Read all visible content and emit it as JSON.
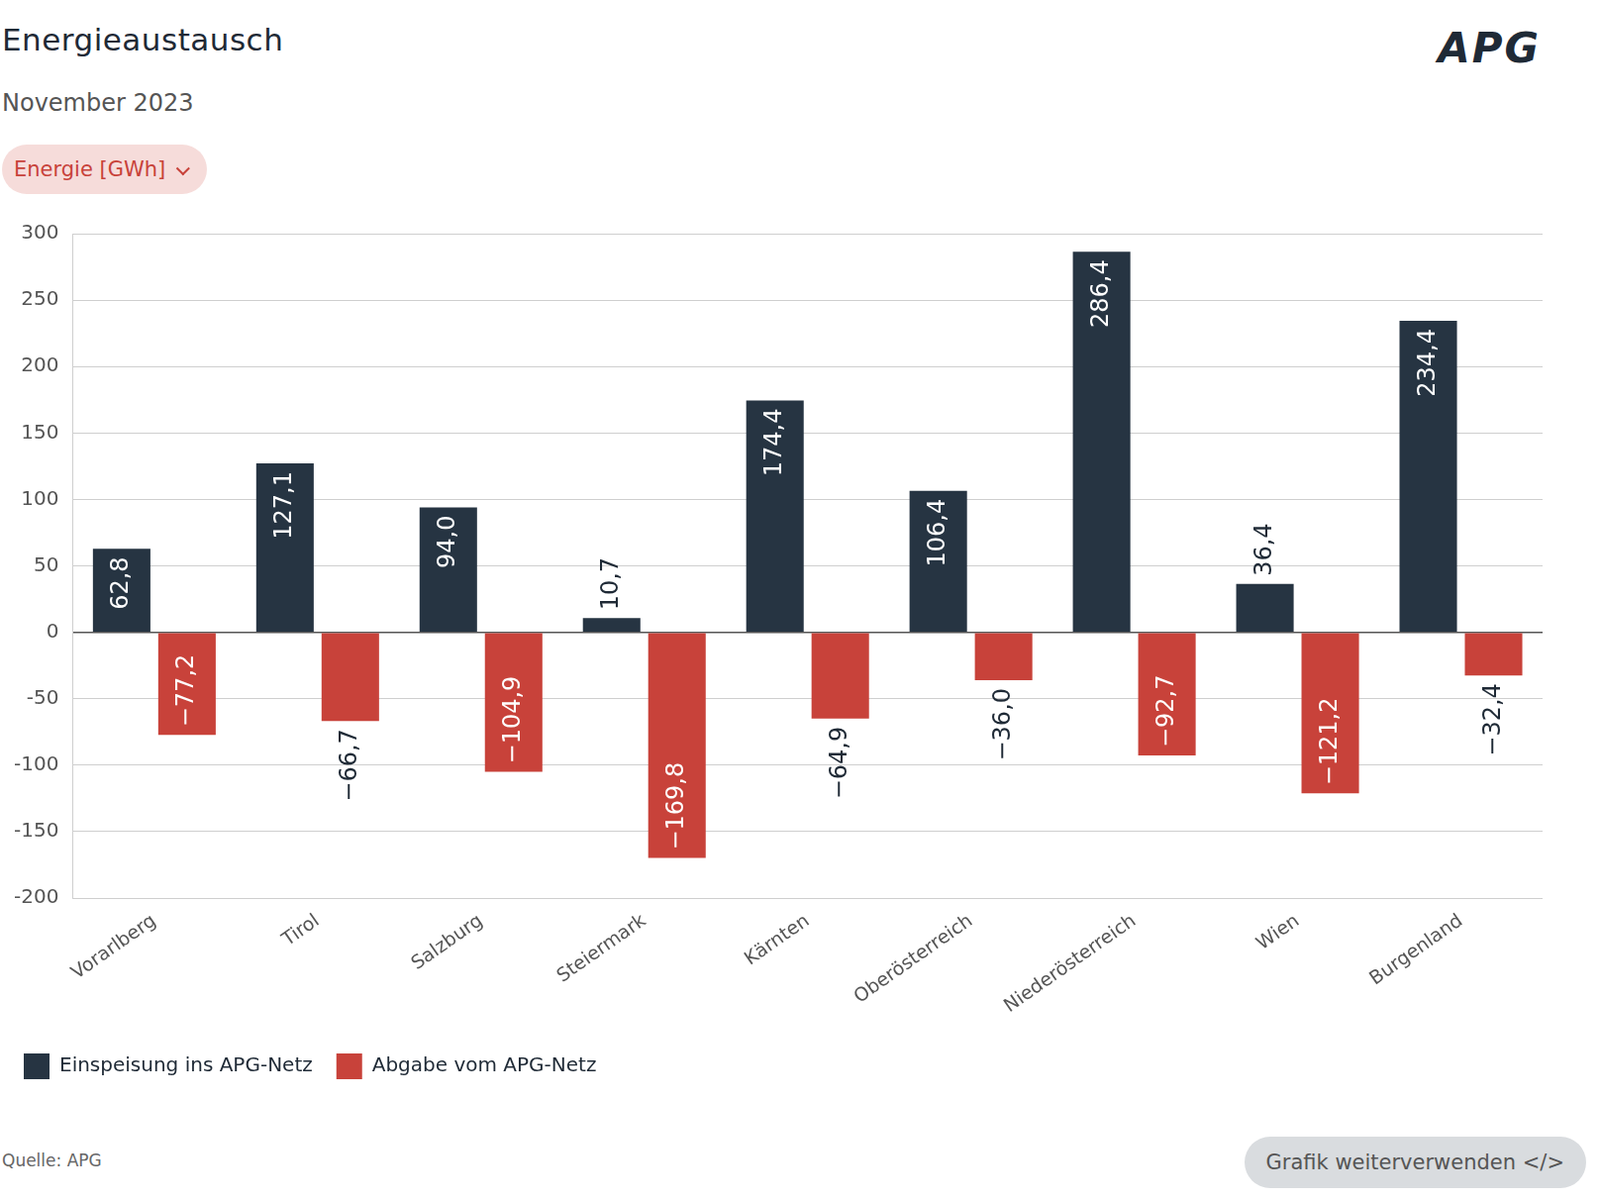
{
  "chart_data": {
    "type": "bar",
    "title": "Energieaustausch",
    "subtitle": "November 2023",
    "categories": [
      "Vorarlberg",
      "Tirol",
      "Salzburg",
      "Steiermark",
      "Kärnten",
      "Oberösterreich",
      "Niederösterreich",
      "Wien",
      "Burgenland"
    ],
    "series": [
      {
        "name": "Einspeisung ins APG-Netz",
        "color": "#263442",
        "values": [
          62.8,
          127.1,
          94.0,
          10.7,
          174.4,
          106.4,
          286.4,
          36.4,
          234.4
        ],
        "value_labels": [
          "62,8",
          "127,1",
          "94,0",
          "10,7",
          "174,4",
          "106,4",
          "286,4",
          "36,4",
          "234,4"
        ]
      },
      {
        "name": "Abgabe vom APG-Netz",
        "color": "#c8423a",
        "values": [
          -77.2,
          -66.7,
          -104.9,
          -169.8,
          -64.9,
          -36.0,
          -92.7,
          -121.2,
          -32.4
        ],
        "value_labels": [
          "−77,2",
          "−66,7",
          "−104,9",
          "−169,8",
          "−64,9",
          "−36,0",
          "−92,7",
          "−121,2",
          "−32,4"
        ]
      }
    ],
    "ylim": [
      -200,
      300
    ],
    "yticks": [
      -200,
      -150,
      -100,
      -50,
      0,
      50,
      100,
      150,
      200,
      250,
      300
    ],
    "grid": true,
    "legend": "bottom",
    "data_labels": true
  },
  "page": {
    "unit_button": "Energie [GWh]",
    "logo": "APG",
    "source": "Quelle: APG",
    "embed_button": "Grafik weiterverwenden </>"
  }
}
